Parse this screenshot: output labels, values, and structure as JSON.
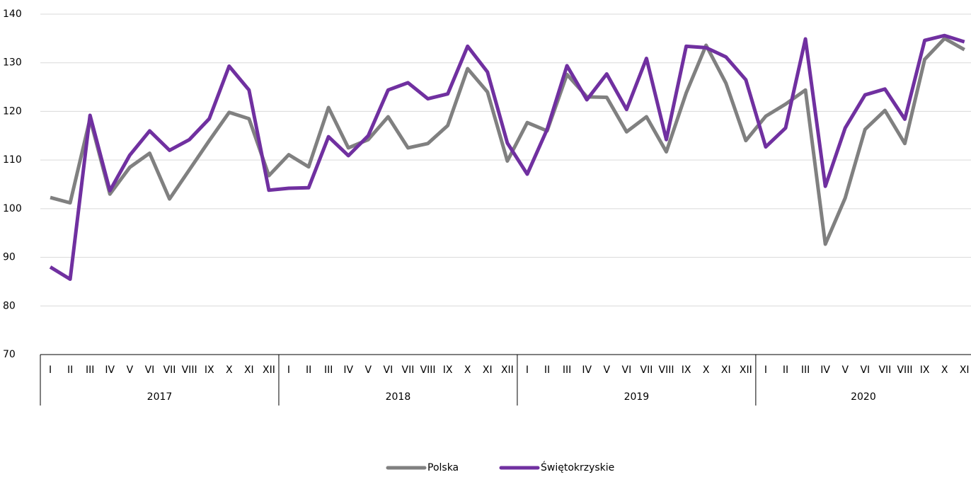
{
  "chart_data": {
    "type": "line",
    "category_groups": [
      {
        "label": "2017",
        "categories": [
          "I",
          "II",
          "III",
          "IV",
          "V",
          "VI",
          "VII",
          "VIII",
          "IX",
          "X",
          "XI",
          "XII"
        ]
      },
      {
        "label": "2018",
        "categories": [
          "I",
          "II",
          "III",
          "IV",
          "V",
          "VI",
          "VII",
          "VIII",
          "IX",
          "X",
          "XI",
          "XII"
        ]
      },
      {
        "label": "2019",
        "categories": [
          "I",
          "II",
          "III",
          "IV",
          "V",
          "VI",
          "VII",
          "VIII",
          "IX",
          "X",
          "XI",
          "XII"
        ]
      },
      {
        "label": "2020",
        "categories": [
          "I",
          "II",
          "III",
          "IV",
          "V",
          "VI",
          "VII",
          "VIII",
          "IX",
          "X",
          "XI"
        ]
      }
    ],
    "series": [
      {
        "name": "Polska",
        "color": "#808080",
        "values": [
          102.3,
          101.2,
          118.5,
          103,
          108.5,
          111.4,
          102,
          108,
          114,
          119.8,
          118.5,
          106.8,
          111.1,
          108.6,
          120.8,
          112.5,
          114.2,
          118.9,
          112.5,
          113.4,
          117.1,
          128.8,
          124,
          109.8,
          117.7,
          116,
          127.6,
          123,
          122.9,
          115.8,
          118.9,
          111.7,
          123.8,
          133.6,
          125.8,
          114,
          119,
          121.5,
          124.4,
          92.7,
          102.2,
          116.3,
          120.2,
          113.4,
          130.7,
          135,
          132.7
        ]
      },
      {
        "name": "Świętokrzyskie",
        "color": "#7030a0",
        "values": [
          88,
          85.5,
          119.2,
          103.7,
          111,
          116,
          112,
          114.2,
          118.5,
          129.3,
          124.4,
          103.8,
          104.2,
          104.3,
          114.8,
          110.9,
          115,
          124.4,
          125.9,
          122.6,
          123.6,
          133.4,
          128.1,
          113.5,
          107.1,
          116.3,
          129.4,
          122.4,
          127.7,
          120.4,
          130.9,
          114.2,
          133.4,
          133.1,
          131.2,
          126.5,
          112.7,
          116.6,
          134.9,
          104.6,
          116.6,
          123.4,
          124.6,
          118.4,
          134.6,
          135.6,
          134.3
        ]
      }
    ],
    "ylim": [
      70,
      140
    ],
    "yticks": [
      70,
      80,
      90,
      100,
      110,
      120,
      130,
      140
    ],
    "grid": true,
    "legend": "bottom"
  }
}
